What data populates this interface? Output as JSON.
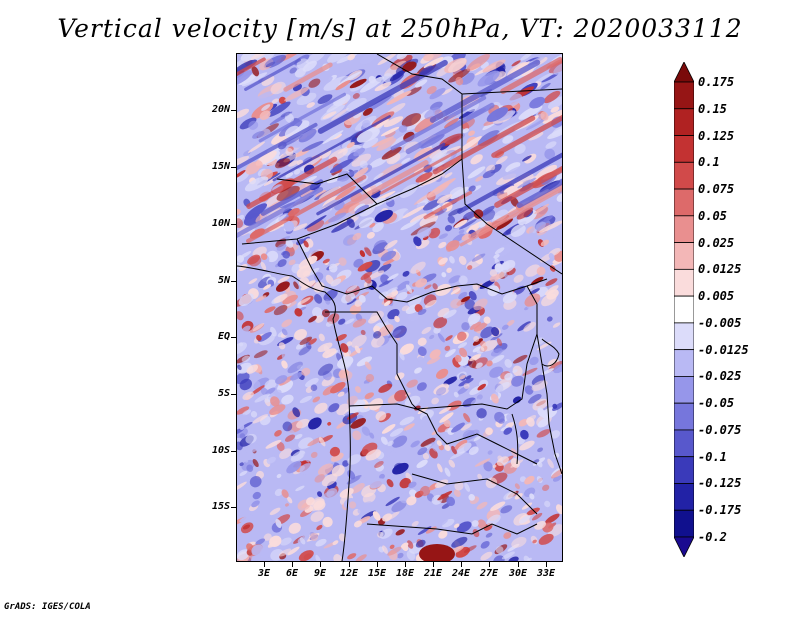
{
  "title": "Vertical velocity [m/s] at 250hPa, VT: 2020033112",
  "credit": "GrADS: IGES/COLA",
  "map": {
    "variable": "Vertical velocity",
    "units": "m/s",
    "level": "250hPa",
    "valid_time": "2020033112",
    "lat_labels": [
      "20N",
      "15N",
      "10N",
      "5N",
      "EQ",
      "5S",
      "10S",
      "15S"
    ],
    "lon_labels": [
      "3E",
      "6E",
      "9E",
      "12E",
      "15E",
      "18E",
      "21E",
      "24E",
      "27E",
      "30E",
      "33E"
    ]
  },
  "colorbar": {
    "labels": [
      "0.175",
      "0.15",
      "0.125",
      "0.1",
      "0.075",
      "0.05",
      "0.025",
      "0.0125",
      "0.005",
      "-0.005",
      "-0.0125",
      "-0.025",
      "-0.05",
      "-0.075",
      "-0.1",
      "-0.125",
      "-0.175",
      "-0.2"
    ],
    "colors": [
      "#7a0a0a",
      "#961515",
      "#b02222",
      "#c33232",
      "#d14a4a",
      "#dd6a6a",
      "#e98f8f",
      "#f3b7b7",
      "#fadcdc",
      "#ffffff",
      "#dcdcfa",
      "#b9b9f4",
      "#9696ea",
      "#7676dc",
      "#5858cc",
      "#3a3aba",
      "#2222a6",
      "#10108e",
      "#05057a"
    ],
    "top_color": "#7a0a0a",
    "bottom_color": "#1a0a90"
  }
}
